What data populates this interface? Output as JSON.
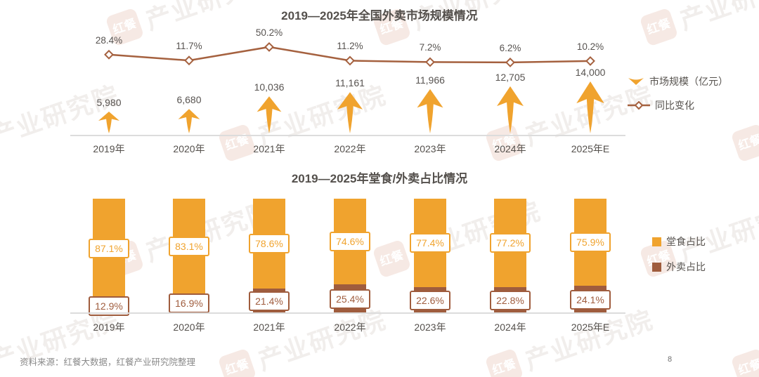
{
  "colors": {
    "orange": "#f0a32e",
    "brown": "#9f5c3d",
    "line_brown": "#a5613f",
    "dark_text": "#575350",
    "axis": "#dcdcdc"
  },
  "watermark": {
    "logo": "红餐",
    "text": "产业研究院"
  },
  "footer": {
    "source": "资料来源：红餐大数据，红餐产业研究院整理",
    "page_number": "8"
  },
  "chart_data": [
    {
      "type": "combo-arrow-line",
      "title": "2019—2025年全国外卖市场规模情况",
      "categories": [
        "2019年",
        "2020年",
        "2021年",
        "2022年",
        "2023年",
        "2024年",
        "2025年E"
      ],
      "series": [
        {
          "name": "市场规模（亿元）",
          "type": "arrow",
          "values": [
            5980,
            6680,
            10036,
            11161,
            11966,
            12705,
            14000
          ],
          "labels": [
            "5,980",
            "6,680",
            "10,036",
            "11,161",
            "11,966",
            "12,705",
            "14,000"
          ]
        },
        {
          "name": "同比变化",
          "type": "line",
          "values": [
            28.4,
            11.7,
            50.2,
            11.2,
            7.2,
            6.2,
            10.2
          ],
          "labels": [
            "28.4%",
            "11.7%",
            "50.2%",
            "11.2%",
            "7.2%",
            "6.2%",
            "10.2%"
          ]
        }
      ],
      "legend": [
        {
          "label": "市场规模（亿元）"
        },
        {
          "label": "同比变化"
        }
      ],
      "grid": false,
      "legend_position": "right"
    },
    {
      "type": "stacked-bar",
      "title": "2019—2025年堂食/外卖占比情况",
      "categories": [
        "2019年",
        "2020年",
        "2021年",
        "2022年",
        "2023年",
        "2024年",
        "2025年E"
      ],
      "series": [
        {
          "name": "堂食占比",
          "values": [
            87.1,
            83.1,
            78.6,
            74.6,
            77.4,
            77.2,
            75.9
          ],
          "labels": [
            "87.1%",
            "83.1%",
            "78.6%",
            "74.6%",
            "77.4%",
            "77.2%",
            "75.9%"
          ]
        },
        {
          "name": "外卖占比",
          "values": [
            12.9,
            16.9,
            21.4,
            25.4,
            22.6,
            22.8,
            24.1
          ],
          "labels": [
            "12.9%",
            "16.9%",
            "21.4%",
            "25.4%",
            "22.6%",
            "22.8%",
            "24.1%"
          ]
        }
      ],
      "legend": [
        {
          "label": "堂食占比"
        },
        {
          "label": "外卖占比"
        }
      ],
      "ylim": [
        0,
        100
      ],
      "grid": false,
      "legend_position": "right"
    }
  ]
}
